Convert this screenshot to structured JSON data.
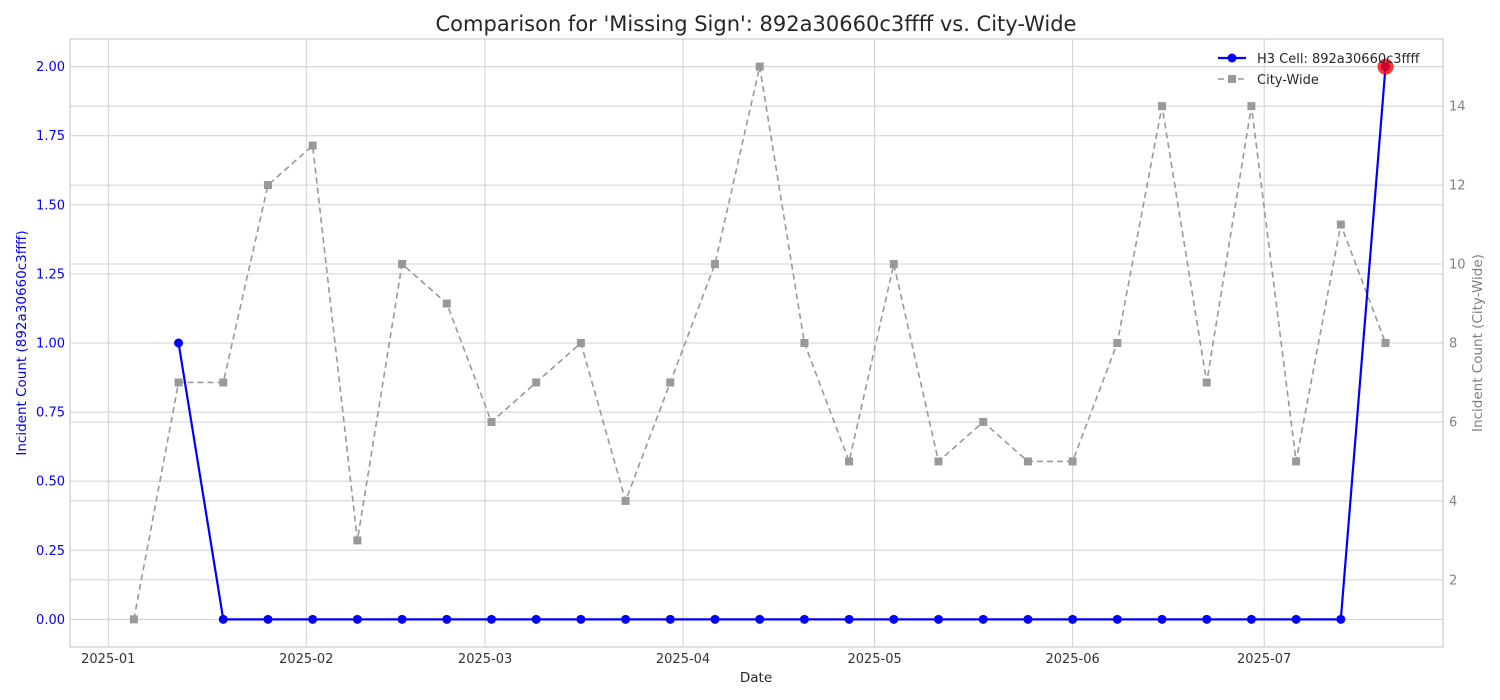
{
  "chart_data": {
    "type": "line",
    "title": "Comparison for 'Missing Sign': 892a30660c3ffff vs. City-Wide",
    "xlabel": "Date",
    "ylabel_left": "Incident Count (892a30660c3ffff)",
    "ylabel_right": "Incident Count (City-Wide)",
    "x_ticks": [
      "2025-01",
      "2025-02",
      "2025-03",
      "2025-04",
      "2025-05",
      "2025-06",
      "2025-07"
    ],
    "y_left_ticks": [
      "0.00",
      "0.25",
      "0.50",
      "0.75",
      "1.00",
      "1.25",
      "1.50",
      "1.75",
      "2.00"
    ],
    "y_right_ticks": [
      "2",
      "4",
      "6",
      "8",
      "10",
      "12",
      "14"
    ],
    "y_left_lim": [
      -0.1,
      2.1
    ],
    "y_right_lim": [
      0.3,
      15.7
    ],
    "grid": true,
    "legend_position": "top-right",
    "series": [
      {
        "name": "H3 Cell: 892a30660c3ffff",
        "axis": "left",
        "color": "#0000ff",
        "marker": "circle",
        "line_style": "solid",
        "x": [
          "2025-01-12",
          "2025-01-19",
          "2025-01-26",
          "2025-02-02",
          "2025-02-09",
          "2025-02-16",
          "2025-02-23",
          "2025-03-02",
          "2025-03-09",
          "2025-03-16",
          "2025-03-23",
          "2025-03-30",
          "2025-04-06",
          "2025-04-13",
          "2025-04-20",
          "2025-04-27",
          "2025-05-04",
          "2025-05-11",
          "2025-05-18",
          "2025-05-25",
          "2025-06-01",
          "2025-06-08",
          "2025-06-15",
          "2025-06-22",
          "2025-06-29",
          "2025-07-06",
          "2025-07-13",
          "2025-07-20"
        ],
        "values": [
          1,
          0,
          0,
          0,
          0,
          0,
          0,
          0,
          0,
          0,
          0,
          0,
          0,
          0,
          0,
          0,
          0,
          0,
          0,
          0,
          0,
          0,
          0,
          0,
          0,
          0,
          0,
          2
        ]
      },
      {
        "name": "City-Wide",
        "axis": "right",
        "color": "#999999",
        "marker": "square",
        "line_style": "dashed",
        "x": [
          "2025-01-05",
          "2025-01-12",
          "2025-01-19",
          "2025-01-26",
          "2025-02-02",
          "2025-02-09",
          "2025-02-16",
          "2025-02-23",
          "2025-03-02",
          "2025-03-09",
          "2025-03-16",
          "2025-03-23",
          "2025-03-30",
          "2025-04-06",
          "2025-04-13",
          "2025-04-20",
          "2025-04-27",
          "2025-05-04",
          "2025-05-11",
          "2025-05-18",
          "2025-05-25",
          "2025-06-01",
          "2025-06-08",
          "2025-06-15",
          "2025-06-22",
          "2025-06-29",
          "2025-07-06",
          "2025-07-13",
          "2025-07-20"
        ],
        "values": [
          1,
          7,
          7,
          12,
          13,
          3,
          10,
          9,
          6,
          7,
          8,
          4,
          7,
          10,
          15,
          8,
          5,
          10,
          5,
          6,
          5,
          5,
          8,
          14,
          7,
          14,
          5,
          11,
          8
        ]
      }
    ],
    "highlight": {
      "series": "H3 Cell: 892a30660c3ffff",
      "x": "2025-07-20",
      "value": 2,
      "color": "#ff0000"
    }
  }
}
